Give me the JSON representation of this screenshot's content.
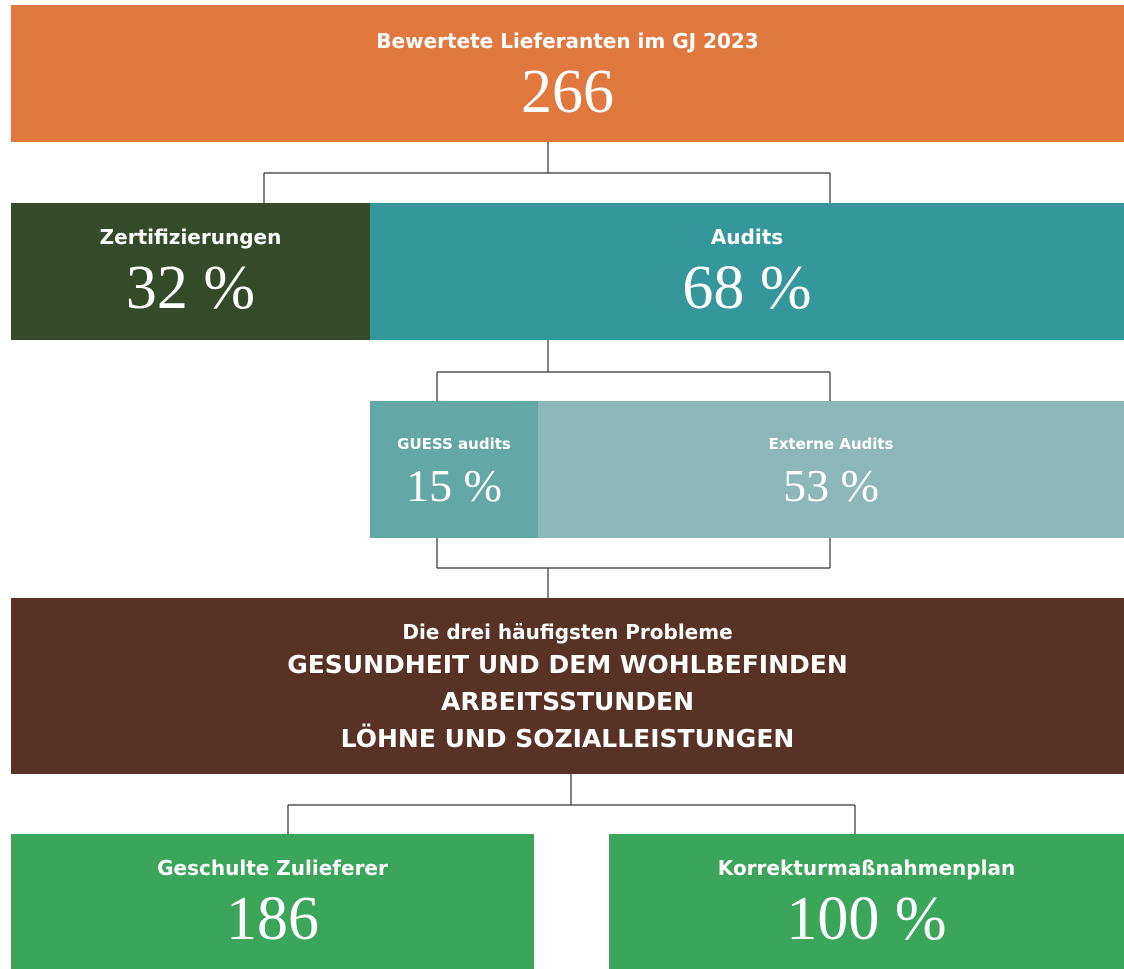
{
  "top": {
    "label": "Bewertete Lieferanten im GJ 2023",
    "value": "266"
  },
  "split": [
    {
      "label": "Zertifizierungen",
      "value": "32 %"
    },
    {
      "label": "Audits",
      "value": "68 %"
    }
  ],
  "audits": [
    {
      "label": "GUESS audits",
      "value": "15 %"
    },
    {
      "label": "Externe Audits",
      "value": "53 %"
    }
  ],
  "issues": {
    "title": "Die drei häufigsten Probleme",
    "items": [
      "GESUNDHEIT UND DEM WOHLBEFINDEN",
      "ARBEITSSTUNDEN",
      "LÖHNE UND SOZIALLEISTUNGEN"
    ]
  },
  "outcomes": [
    {
      "label": "Geschulte Zulieferer",
      "value": "186"
    },
    {
      "label": "Korrekturmaßnahmenplan",
      "value": "100 %"
    }
  ]
}
